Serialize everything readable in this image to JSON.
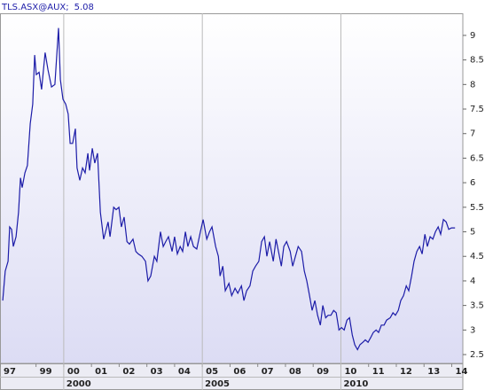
{
  "chart_data": {
    "type": "line",
    "series": [
      {
        "name": "TLS.ASX@AUX;",
        "color": "#1c1ca8",
        "x": [
          1997.8,
          1997.89,
          1997.99,
          1998.05,
          1998.12,
          1998.18,
          1998.28,
          1998.37,
          1998.44,
          1998.5,
          1998.6,
          1998.69,
          1998.79,
          1998.88,
          1998.95,
          1999.01,
          1999.11,
          1999.2,
          1999.33,
          1999.43,
          1999.56,
          1999.68,
          1999.81,
          1999.88,
          1999.97,
          2000.07,
          2000.16,
          2000.23,
          2000.32,
          2000.42,
          2000.48,
          2000.58,
          2000.68,
          2000.77,
          2000.87,
          2000.93,
          2001.03,
          2001.12,
          2001.22,
          2001.32,
          2001.44,
          2001.51,
          2001.6,
          2001.67,
          2001.8,
          2001.89,
          2001.99,
          2002.08,
          2002.18,
          2002.28,
          2002.37,
          2002.5,
          2002.6,
          2002.69,
          2002.82,
          2002.95,
          2003.04,
          2003.14,
          2003.27,
          2003.36,
          2003.49,
          2003.59,
          2003.68,
          2003.78,
          2003.91,
          2004.0,
          2004.1,
          2004.2,
          2004.29,
          2004.39,
          2004.48,
          2004.58,
          2004.68,
          2004.8,
          2004.93,
          2005.03,
          2005.16,
          2005.26,
          2005.35,
          2005.48,
          2005.58,
          2005.64,
          2005.74,
          2005.83,
          2005.96,
          2006.06,
          2006.18,
          2006.28,
          2006.41,
          2006.5,
          2006.6,
          2006.72,
          2006.82,
          2006.92,
          2007.04,
          2007.14,
          2007.24,
          2007.33,
          2007.43,
          2007.56,
          2007.66,
          2007.75,
          2007.85,
          2007.94,
          2008.04,
          2008.17,
          2008.26,
          2008.36,
          2008.46,
          2008.58,
          2008.68,
          2008.77,
          2008.87,
          2008.96,
          2009.06,
          2009.16,
          2009.26,
          2009.35,
          2009.45,
          2009.54,
          2009.64,
          2009.74,
          2009.83,
          2009.93,
          2010.02,
          2010.12,
          2010.22,
          2010.31,
          2010.41,
          2010.5,
          2010.6,
          2010.69,
          2010.79,
          2010.88,
          2010.98,
          2011.08,
          2011.17,
          2011.27,
          2011.36,
          2011.46,
          2011.56,
          2011.65,
          2011.78,
          2011.88,
          2011.97,
          2012.07,
          2012.16,
          2012.26,
          2012.36,
          2012.45,
          2012.55,
          2012.64,
          2012.74,
          2012.84,
          2012.93,
          2013.03,
          2013.12,
          2013.22,
          2013.32,
          2013.41,
          2013.51,
          2013.6,
          2013.7,
          2013.8,
          2013.89,
          2013.99,
          2014.12
        ],
        "values": [
          3.6,
          4.2,
          4.4,
          5.1,
          5.05,
          4.7,
          4.9,
          5.4,
          6.1,
          5.9,
          6.2,
          6.35,
          7.2,
          7.6,
          8.6,
          8.2,
          8.25,
          7.9,
          8.65,
          8.3,
          7.95,
          8.0,
          9.15,
          8.1,
          7.7,
          7.6,
          7.4,
          6.8,
          6.8,
          7.1,
          6.3,
          6.05,
          6.3,
          6.2,
          6.6,
          6.25,
          6.7,
          6.4,
          6.6,
          5.4,
          4.85,
          5.0,
          5.2,
          4.9,
          5.5,
          5.45,
          5.5,
          5.1,
          5.3,
          4.8,
          4.75,
          4.85,
          4.6,
          4.55,
          4.5,
          4.4,
          4.0,
          4.1,
          4.5,
          4.4,
          5.0,
          4.7,
          4.8,
          4.9,
          4.6,
          4.9,
          4.55,
          4.7,
          4.6,
          5.0,
          4.7,
          4.9,
          4.7,
          4.65,
          5.0,
          5.25,
          4.85,
          5.0,
          5.1,
          4.7,
          4.5,
          4.1,
          4.3,
          3.8,
          3.95,
          3.7,
          3.85,
          3.75,
          3.9,
          3.6,
          3.8,
          3.9,
          4.2,
          4.3,
          4.4,
          4.8,
          4.9,
          4.5,
          4.8,
          4.4,
          4.85,
          4.6,
          4.3,
          4.7,
          4.8,
          4.6,
          4.3,
          4.5,
          4.7,
          4.6,
          4.2,
          4.0,
          3.7,
          3.4,
          3.6,
          3.3,
          3.1,
          3.5,
          3.25,
          3.3,
          3.3,
          3.4,
          3.35,
          3.0,
          3.05,
          3.0,
          3.2,
          3.25,
          2.9,
          2.7,
          2.6,
          2.7,
          2.75,
          2.8,
          2.75,
          2.85,
          2.95,
          3.0,
          2.95,
          3.1,
          3.1,
          3.2,
          3.25,
          3.35,
          3.3,
          3.4,
          3.6,
          3.7,
          3.9,
          3.8,
          4.1,
          4.4,
          4.6,
          4.7,
          4.55,
          4.95,
          4.7,
          4.9,
          4.85,
          5.0,
          5.1,
          4.95,
          5.25,
          5.2,
          5.05,
          5.08,
          5.08
        ]
      }
    ],
    "last_label": "5.08",
    "xlim": [
      1997.7,
      2014.4
    ],
    "ylim": [
      2.32,
      9.45
    ],
    "yticks": [
      2.5,
      3,
      3.5,
      4,
      4.5,
      5,
      5.5,
      6,
      6.5,
      7,
      7.5,
      8,
      8.5,
      9
    ],
    "xticks": [
      {
        "value": 1997.7,
        "label": "97"
      },
      {
        "value": 1999,
        "label": "99"
      },
      {
        "value": 2000,
        "label": "00"
      },
      {
        "value": 2001,
        "label": "01"
      },
      {
        "value": 2002,
        "label": "02"
      },
      {
        "value": 2003,
        "label": "03"
      },
      {
        "value": 2004,
        "label": "04"
      },
      {
        "value": 2005,
        "label": "05"
      },
      {
        "value": 2006,
        "label": "06"
      },
      {
        "value": 2007,
        "label": "07"
      },
      {
        "value": 2008,
        "label": "08"
      },
      {
        "value": 2009,
        "label": "09"
      },
      {
        "value": 2010,
        "label": "10"
      },
      {
        "value": 2011,
        "label": "11"
      },
      {
        "value": 2012,
        "label": "12"
      },
      {
        "value": 2013,
        "label": "13"
      },
      {
        "value": 2014,
        "label": "14"
      }
    ],
    "xticks_major": [
      {
        "value": 2000,
        "label": "2000"
      },
      {
        "value": 2005,
        "label": "2005"
      },
      {
        "value": 2010,
        "label": "2010"
      }
    ]
  }
}
